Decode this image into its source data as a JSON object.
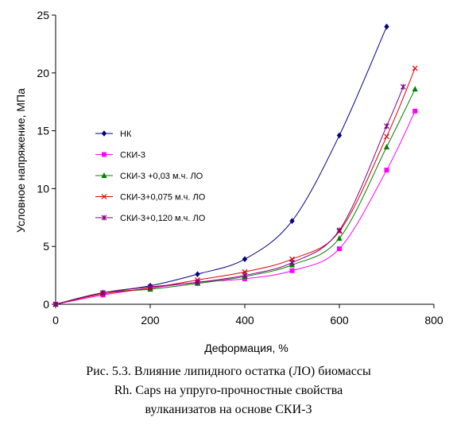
{
  "chart_data": {
    "type": "line",
    "xlabel": "Деформация,  %",
    "ylabel": "Условное напряжение, МПа",
    "xlim": [
      0,
      800
    ],
    "ylim": [
      0,
      25
    ],
    "xticks": [
      0,
      200,
      400,
      600,
      800
    ],
    "yticks": [
      0,
      5,
      10,
      15,
      20,
      25
    ],
    "grid": false,
    "legend_position": "left-middle",
    "series": [
      {
        "name": "НК",
        "color": "#000080",
        "marker": "diamond",
        "points": [
          [
            0,
            0
          ],
          [
            100,
            1.0
          ],
          [
            200,
            1.6
          ],
          [
            300,
            2.6
          ],
          [
            400,
            3.9
          ],
          [
            500,
            7.2
          ],
          [
            600,
            14.6
          ],
          [
            700,
            24.0
          ]
        ]
      },
      {
        "name": "СКИ-3",
        "color": "#FF00FF",
        "marker": "square",
        "points": [
          [
            0,
            0
          ],
          [
            100,
            0.8
          ],
          [
            200,
            1.4
          ],
          [
            300,
            1.9
          ],
          [
            400,
            2.2
          ],
          [
            500,
            2.9
          ],
          [
            600,
            4.8
          ],
          [
            700,
            11.6
          ],
          [
            760,
            16.7
          ]
        ]
      },
      {
        "name": "СКИ-3 +0,03 м.ч. ЛО",
        "color": "#008000",
        "marker": "triangle",
        "points": [
          [
            0,
            0
          ],
          [
            100,
            1.0
          ],
          [
            200,
            1.3
          ],
          [
            300,
            1.8
          ],
          [
            400,
            2.4
          ],
          [
            500,
            3.4
          ],
          [
            600,
            5.7
          ],
          [
            700,
            13.6
          ],
          [
            760,
            18.6
          ]
        ]
      },
      {
        "name": "СКИ-3+0,075 м.ч. ЛО",
        "color": "#E00000",
        "marker": "x",
        "points": [
          [
            0,
            0
          ],
          [
            100,
            0.9
          ],
          [
            200,
            1.4
          ],
          [
            300,
            2.1
          ],
          [
            400,
            2.8
          ],
          [
            500,
            3.9
          ],
          [
            600,
            6.3
          ],
          [
            700,
            14.5
          ],
          [
            760,
            20.4
          ]
        ]
      },
      {
        "name": "СКИ-3+0,120 м.ч. ЛО",
        "color": "#800080",
        "marker": "star",
        "points": [
          [
            0,
            0
          ],
          [
            100,
            1.0
          ],
          [
            200,
            1.5
          ],
          [
            300,
            1.9
          ],
          [
            400,
            2.5
          ],
          [
            500,
            3.6
          ],
          [
            600,
            6.4
          ],
          [
            700,
            15.4
          ],
          [
            735,
            18.8
          ]
        ]
      }
    ]
  },
  "caption": {
    "line1": "Рис. 5.3. Влияние липидного остатка (ЛО) биомассы",
    "line2": "Rh. Caps на упруго-прочностные свойства",
    "line3": "вулканизатов на основе СКИ-3"
  }
}
